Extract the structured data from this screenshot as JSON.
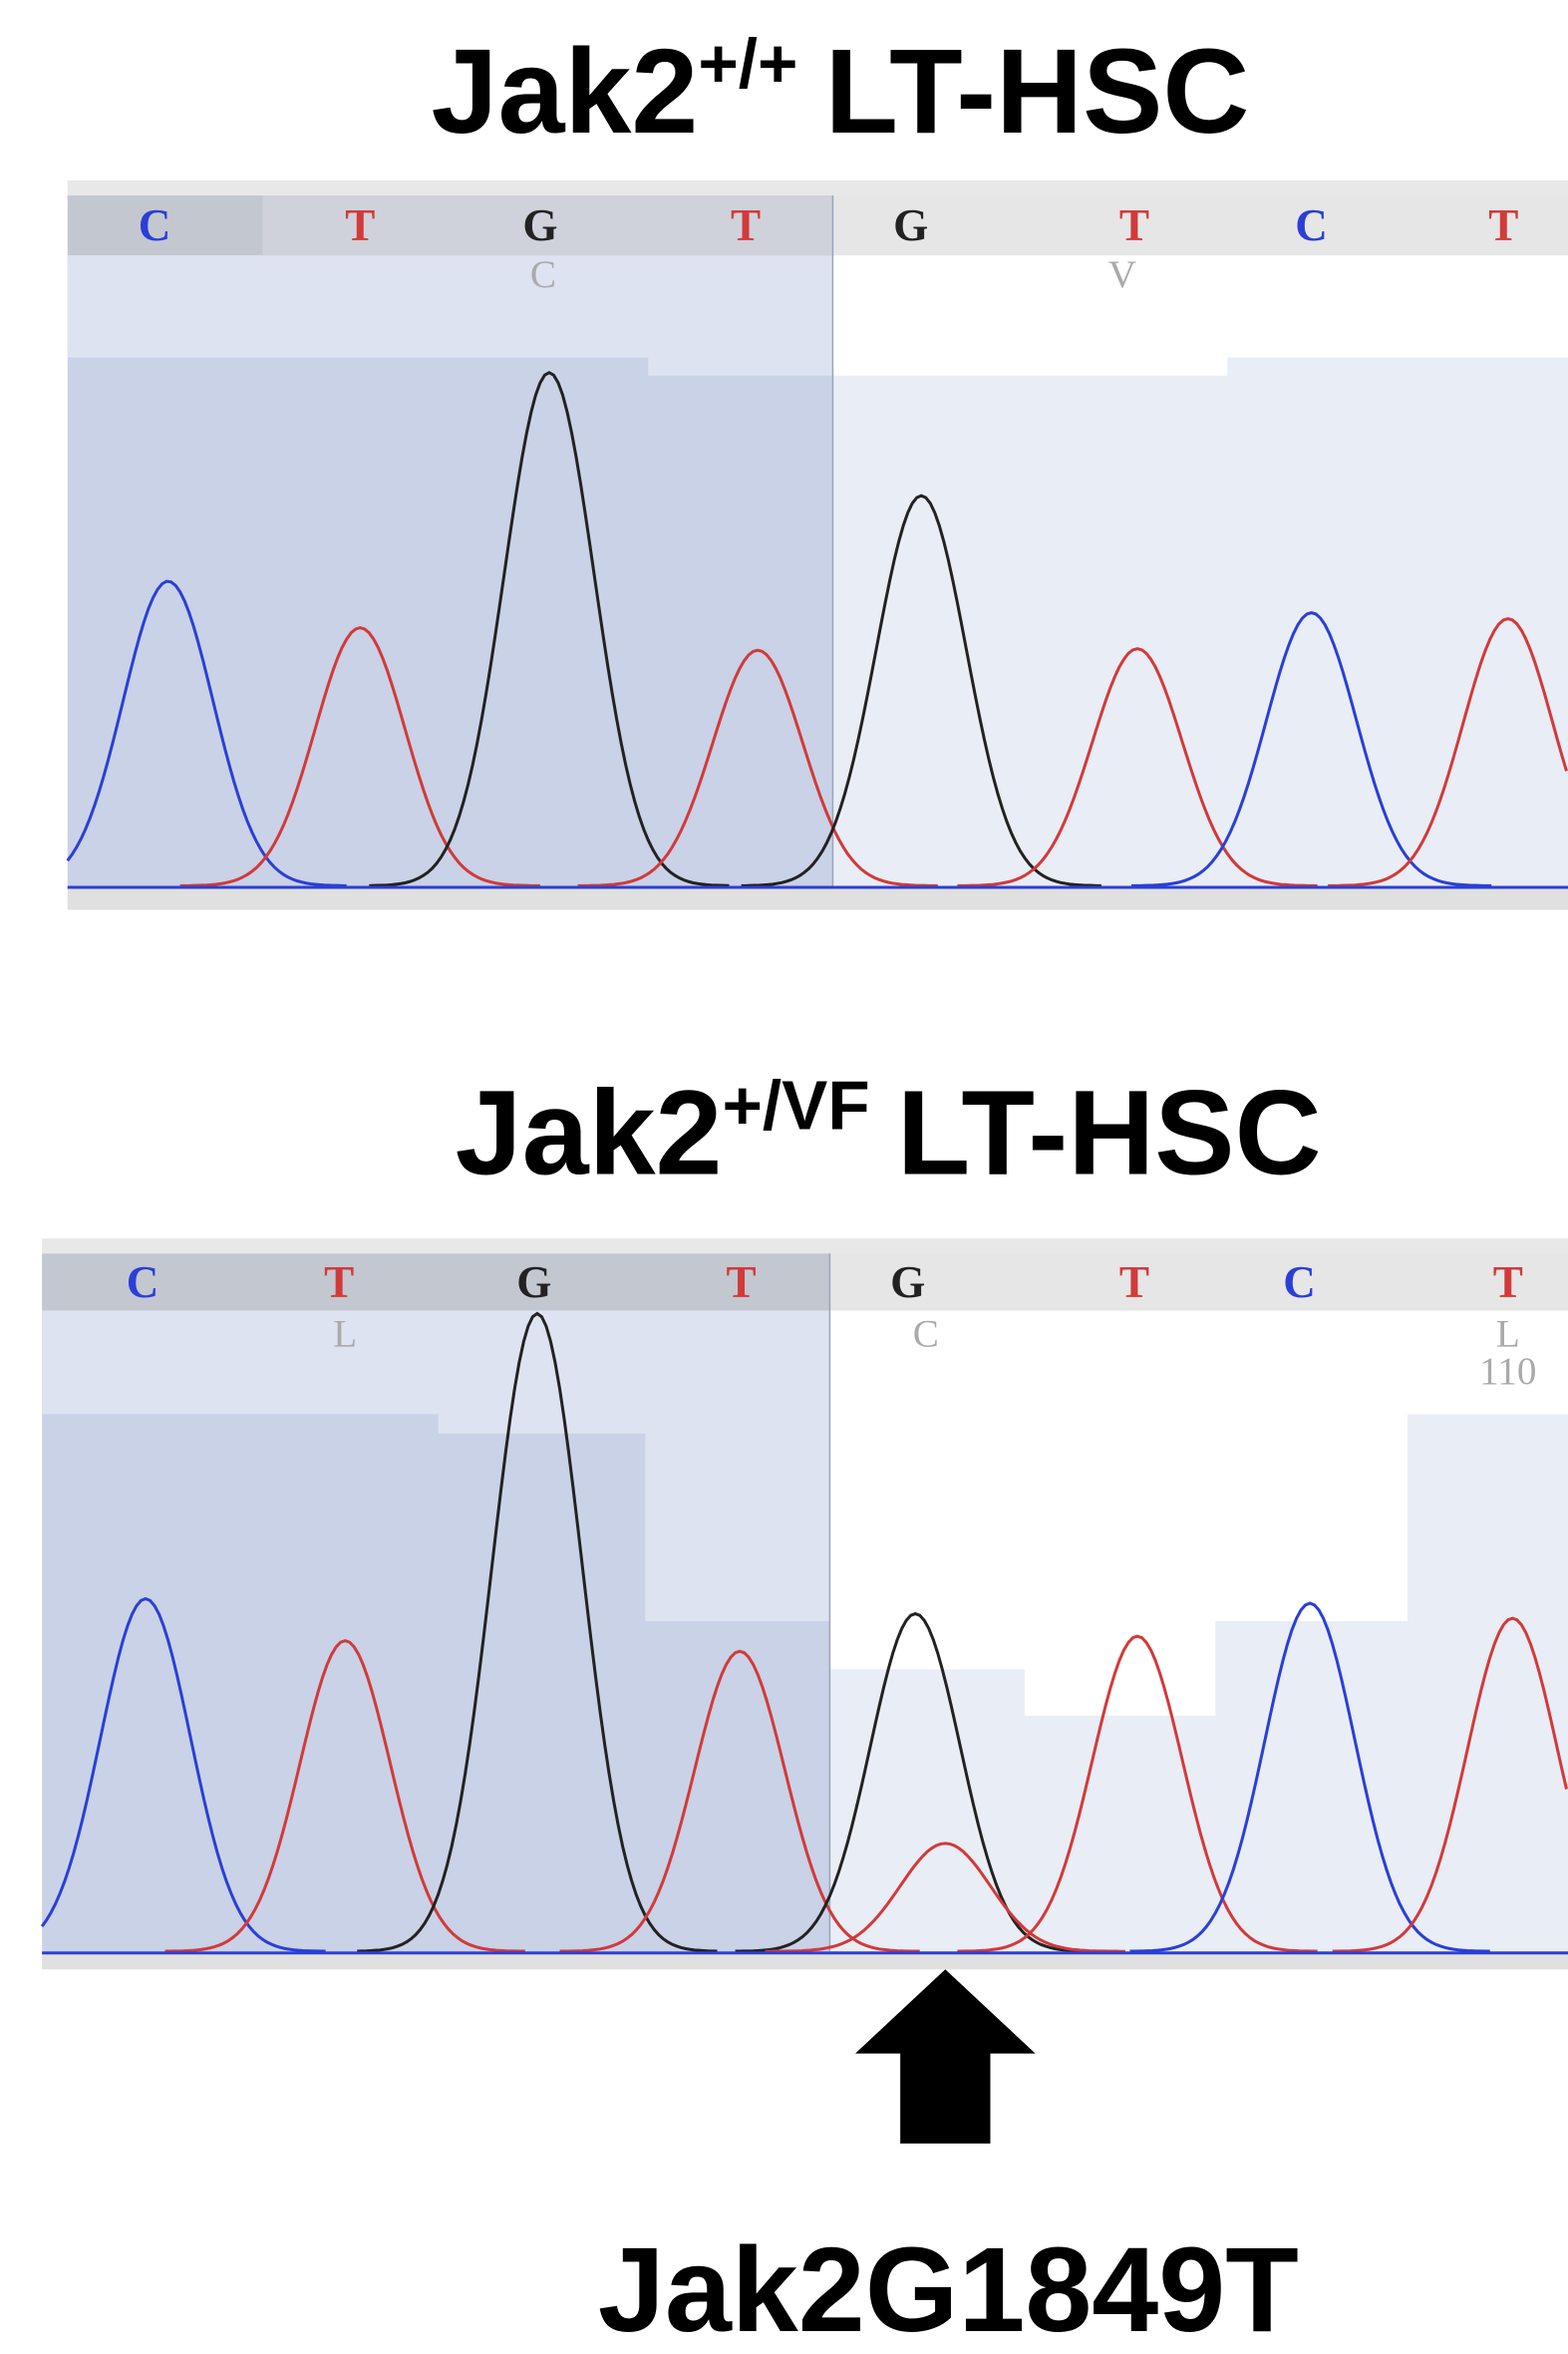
{
  "panels": [
    {
      "title": {
        "gene": "Jak2",
        "genotype": "+/+",
        "cell": "LT-HSC"
      },
      "bases": [
        "C",
        "T",
        "G",
        "T",
        "G",
        "T",
        "C",
        "T"
      ],
      "annotations": [
        "C",
        "V"
      ]
    },
    {
      "title": {
        "gene": "Jak2",
        "genotype": "+/VF",
        "cell": "LT-HSC"
      },
      "bases": [
        "C",
        "T",
        "G",
        "T",
        "G",
        "T",
        "C",
        "T"
      ],
      "annotations": [
        "L",
        "C",
        "L",
        "110"
      ]
    }
  ],
  "mutation_label": "Jak2G1849T"
}
